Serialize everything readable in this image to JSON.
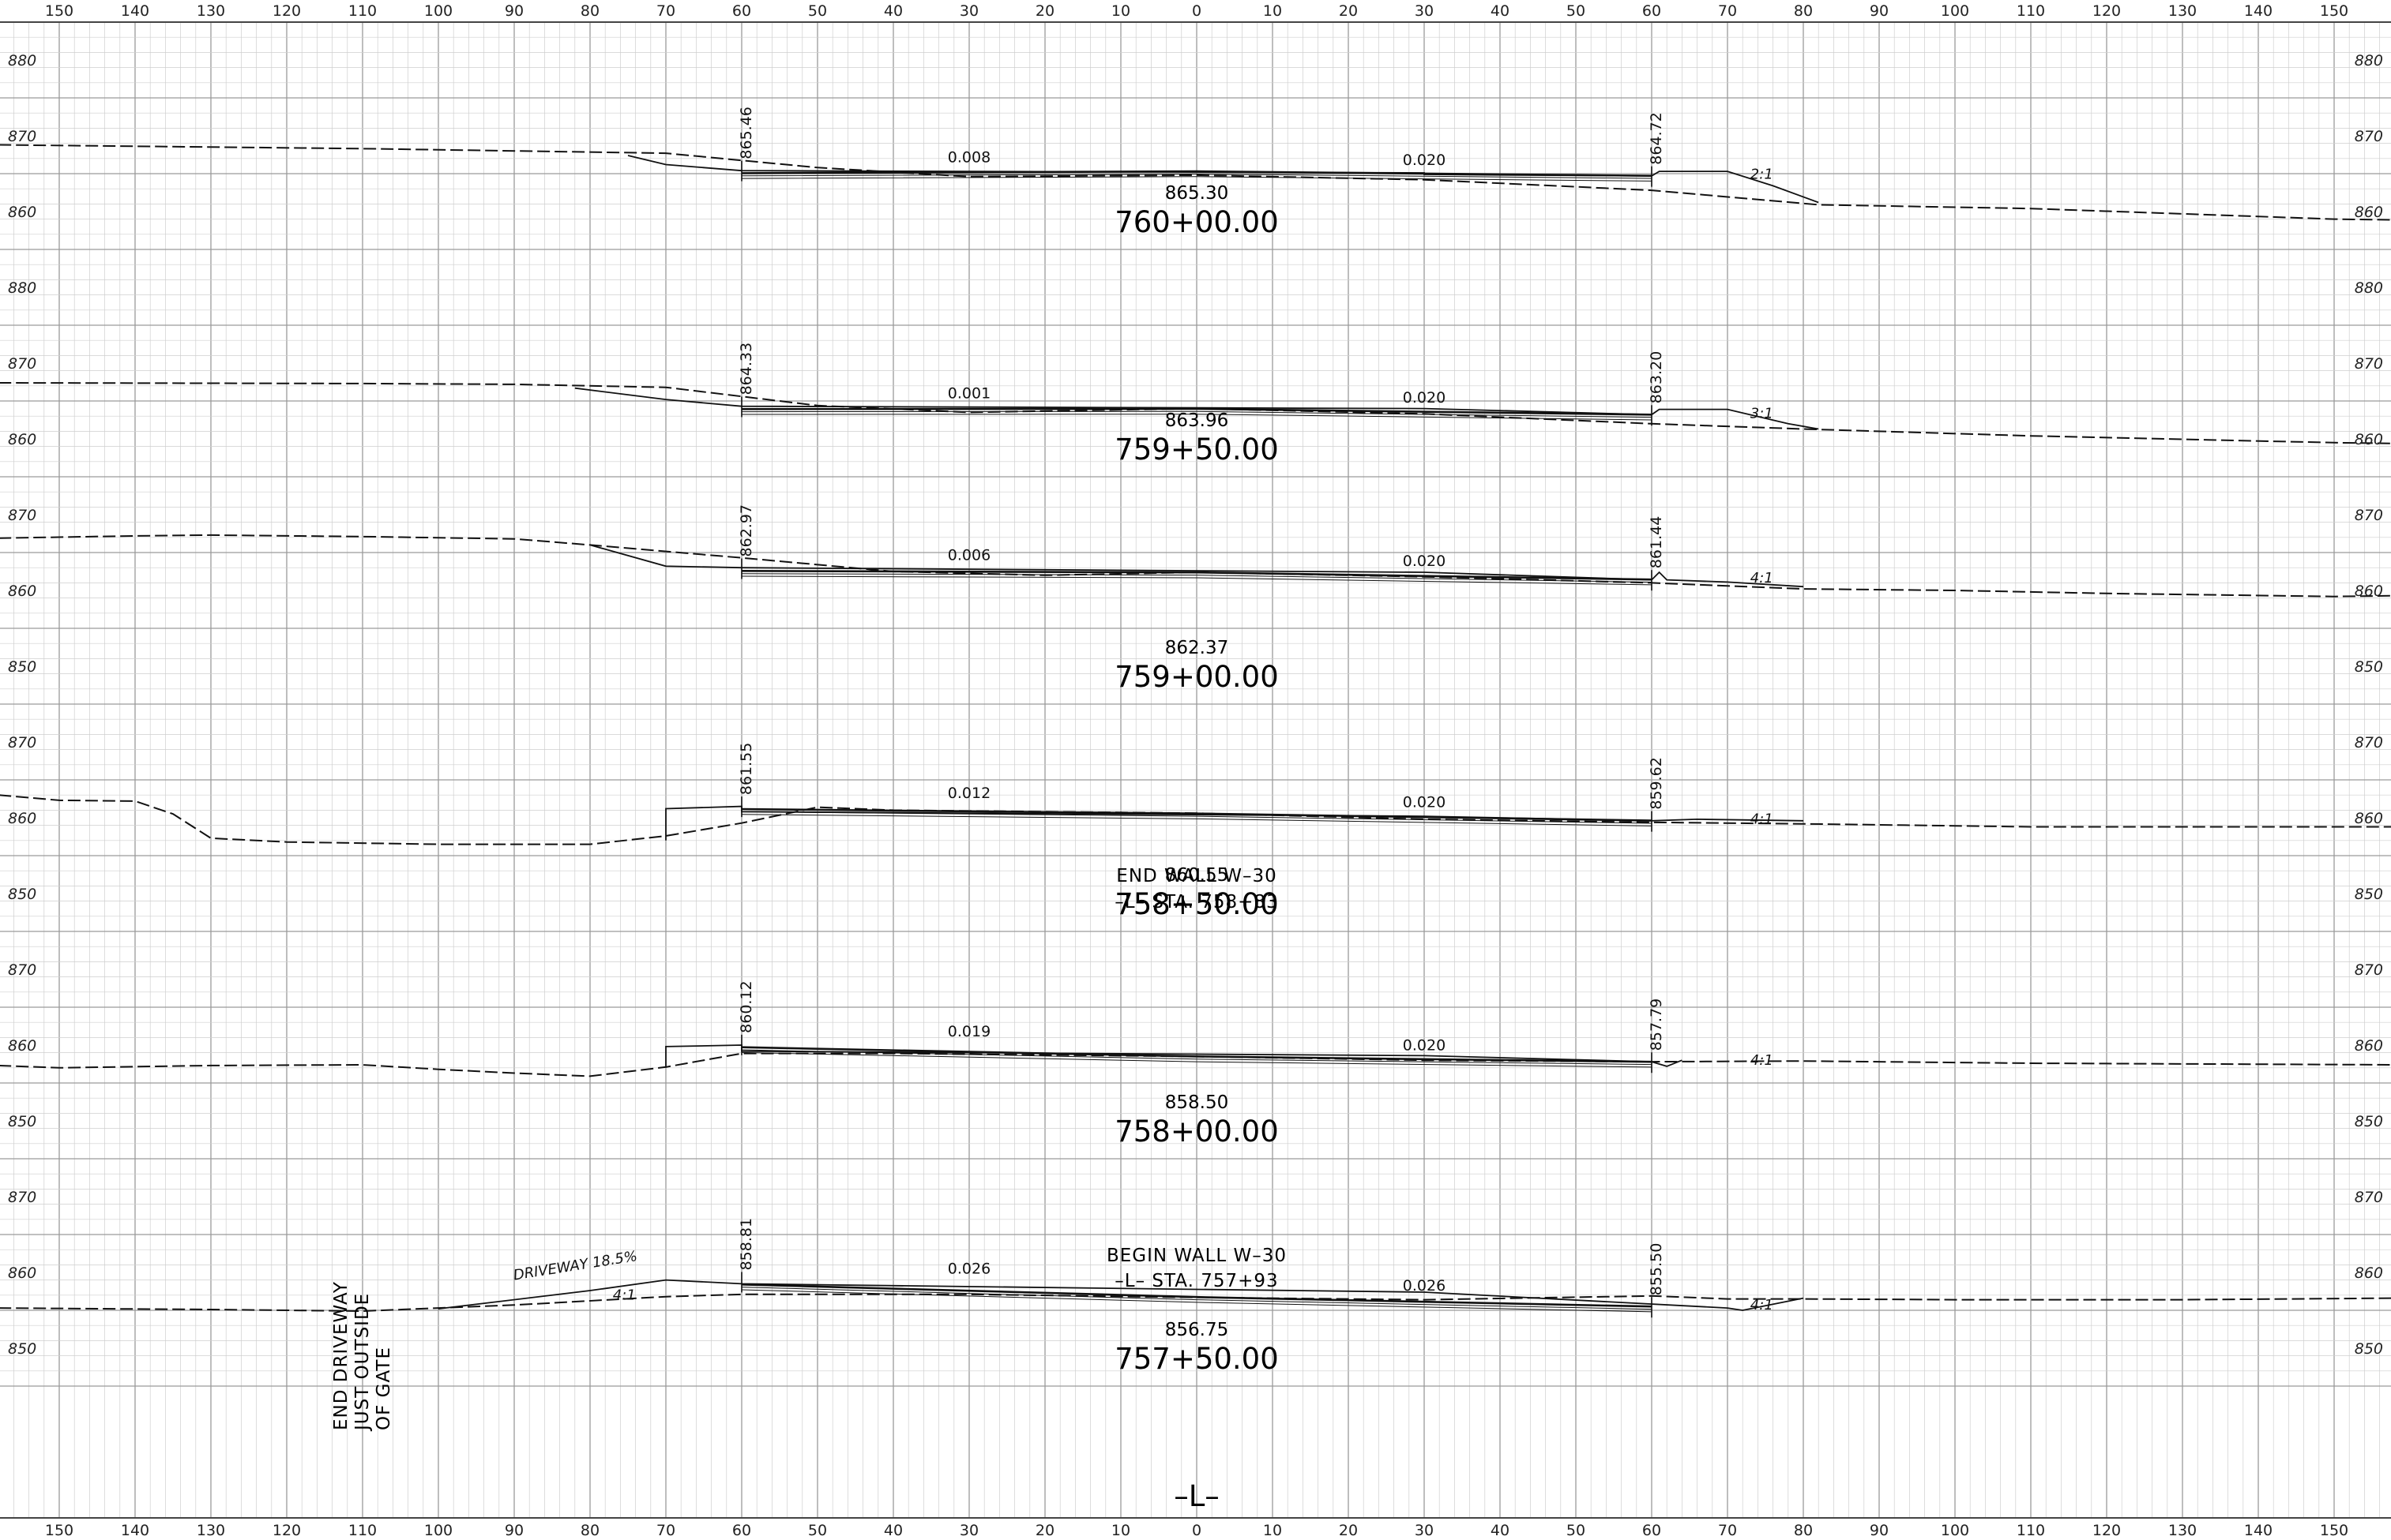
{
  "sheet": {
    "offset_ticks": [
      "150",
      "140",
      "130",
      "120",
      "110",
      "100",
      "90",
      "80",
      "70",
      "60",
      "50",
      "40",
      "30",
      "20",
      "10",
      "0",
      "10",
      "20",
      "30",
      "40",
      "50",
      "60",
      "70",
      "80",
      "90",
      "100",
      "110",
      "120",
      "130",
      "140",
      "150"
    ],
    "centerline_label": "–L–"
  },
  "sections": [
    {
      "station": "760+00.00",
      "elev_labels": [
        "880",
        "870",
        "860"
      ],
      "elev_range": [
        855,
        885
      ],
      "centerline_grade": "865.30",
      "left_edge_grade": "865.46",
      "right_edge_grade": "864.72",
      "left_slope": "0.008",
      "right_slope": "0.020",
      "side_slope": "2:1",
      "existing_ground": [
        [
          -158,
          868.8
        ],
        [
          -110,
          868.3
        ],
        [
          -70,
          867.7
        ],
        [
          -50,
          865.8
        ],
        [
          -30,
          864.6
        ],
        [
          0,
          864.8
        ],
        [
          30,
          864.2
        ],
        [
          60,
          862.8
        ],
        [
          75,
          861.5
        ],
        [
          82,
          860.9
        ],
        [
          110,
          860.4
        ],
        [
          150,
          859.0
        ],
        [
          158,
          858.9
        ]
      ],
      "proposed": [
        [
          -75,
          867.4
        ],
        [
          -70,
          866.2
        ],
        [
          -60,
          865.4
        ],
        [
          30,
          865.1
        ],
        [
          30,
          864.9
        ],
        [
          60,
          864.7
        ],
        [
          61,
          865.3
        ],
        [
          70,
          865.3
        ],
        [
          76,
          863.4
        ],
        [
          82,
          861.2
        ]
      ]
    },
    {
      "station": "759+50.00",
      "elev_labels": [
        "880",
        "870",
        "860"
      ],
      "elev_range": [
        855,
        885
      ],
      "centerline_grade": "863.96",
      "left_edge_grade": "864.33",
      "right_edge_grade": "863.20",
      "left_slope": "0.001",
      "right_slope": "0.020",
      "side_slope": "3:1",
      "existing_ground": [
        [
          -158,
          867.4
        ],
        [
          -110,
          867.3
        ],
        [
          -90,
          867.2
        ],
        [
          -70,
          866.8
        ],
        [
          -50,
          864.4
        ],
        [
          -30,
          863.5
        ],
        [
          0,
          864.0
        ],
        [
          30,
          863.3
        ],
        [
          60,
          862.0
        ],
        [
          80,
          861.3
        ],
        [
          110,
          860.4
        ],
        [
          150,
          859.5
        ],
        [
          158,
          859.4
        ]
      ],
      "proposed": [
        [
          -82,
          866.7
        ],
        [
          -70,
          865.2
        ],
        [
          -60,
          864.3
        ],
        [
          30,
          864.0
        ],
        [
          60,
          863.2
        ],
        [
          61,
          863.9
        ],
        [
          70,
          863.9
        ],
        [
          78,
          862.0
        ],
        [
          82,
          861.3
        ]
      ]
    },
    {
      "station": "759+00.00",
      "elev_labels": [
        "870",
        "860",
        "850"
      ],
      "elev_range": [
        845,
        875
      ],
      "centerline_grade": "862.37",
      "left_edge_grade": "862.97",
      "right_edge_grade": "861.44",
      "left_slope": "0.006",
      "right_slope": "0.020",
      "side_slope": "4:1",
      "existing_ground": [
        [
          -158,
          866.9
        ],
        [
          -140,
          867.2
        ],
        [
          -130,
          867.3
        ],
        [
          -110,
          867.1
        ],
        [
          -90,
          866.8
        ],
        [
          -80,
          866.0
        ],
        [
          -60,
          864.3
        ],
        [
          -40,
          862.5
        ],
        [
          -20,
          862.0
        ],
        [
          0,
          862.4
        ],
        [
          30,
          861.8
        ],
        [
          60,
          861.0
        ],
        [
          80,
          860.2
        ],
        [
          100,
          860.0
        ],
        [
          120,
          859.6
        ],
        [
          150,
          859.2
        ],
        [
          158,
          859.3
        ]
      ],
      "proposed": [
        [
          -80,
          866.0
        ],
        [
          -70,
          863.2
        ],
        [
          -60,
          863.0
        ],
        [
          30,
          862.4
        ],
        [
          60,
          861.4
        ],
        [
          61,
          862.4
        ],
        [
          62,
          861.4
        ],
        [
          70,
          861.1
        ],
        [
          80,
          860.5
        ]
      ]
    },
    {
      "station": "758+50.00",
      "elev_labels": [
        "870",
        "860",
        "850"
      ],
      "elev_range": [
        845,
        875
      ],
      "centerline_grade": "860.55",
      "left_edge_grade": "861.55",
      "right_edge_grade": "859.62",
      "left_slope": "0.012",
      "right_slope": "0.020",
      "side_slope": "4:1",
      "existing_ground": [
        [
          -158,
          863.0
        ],
        [
          -150,
          862.3
        ],
        [
          -140,
          862.2
        ],
        [
          -135,
          860.5
        ],
        [
          -130,
          857.3
        ],
        [
          -120,
          856.8
        ],
        [
          -100,
          856.5
        ],
        [
          -80,
          856.5
        ],
        [
          -70,
          857.6
        ],
        [
          -60,
          859.3
        ],
        [
          -50,
          861.4
        ],
        [
          -40,
          861.0
        ],
        [
          0,
          860.6
        ],
        [
          30,
          859.8
        ],
        [
          60,
          859.4
        ],
        [
          80,
          859.2
        ],
        [
          110,
          858.8
        ],
        [
          158,
          858.8
        ]
      ],
      "proposed": [
        [
          -70,
          857.0
        ],
        [
          -70,
          861.2
        ],
        [
          -60,
          861.5
        ],
        [
          -60,
          860.8
        ],
        [
          30,
          860.2
        ],
        [
          60,
          859.6
        ],
        [
          66,
          859.8
        ],
        [
          80,
          859.6
        ]
      ]
    },
    {
      "station": "758+00.00",
      "elev_labels": [
        "870",
        "860",
        "850"
      ],
      "elev_range": [
        845,
        875
      ],
      "centerline_grade": "858.50",
      "left_edge_grade": "860.12",
      "right_edge_grade": "857.79",
      "left_slope": "0.019",
      "right_slope": "0.020",
      "side_slope": "4:1",
      "existing_ground": [
        [
          -158,
          857.3
        ],
        [
          -150,
          857.0
        ],
        [
          -130,
          857.3
        ],
        [
          -110,
          857.4
        ],
        [
          -100,
          856.8
        ],
        [
          -90,
          856.3
        ],
        [
          -80,
          855.9
        ],
        [
          -70,
          857.1
        ],
        [
          -60,
          858.9
        ],
        [
          -40,
          858.9
        ],
        [
          0,
          858.5
        ],
        [
          30,
          858.0
        ],
        [
          60,
          857.8
        ],
        [
          80,
          857.9
        ],
        [
          110,
          857.6
        ],
        [
          158,
          857.4
        ]
      ],
      "proposed": [
        [
          -70,
          857.0
        ],
        [
          -70,
          859.8
        ],
        [
          -60,
          860.0
        ],
        [
          -60,
          859.2
        ],
        [
          30,
          858.6
        ],
        [
          60,
          857.8
        ],
        [
          62,
          857.2
        ],
        [
          64,
          858.0
        ]
      ]
    },
    {
      "station": "757+50.00",
      "elev_labels": [
        "870",
        "860",
        "850"
      ],
      "elev_range": [
        845,
        875
      ],
      "centerline_grade": "856.75",
      "left_edge_grade": "858.81",
      "right_edge_grade": "855.50",
      "left_slope": "0.026",
      "right_slope": "0.026",
      "side_slope": "4:1",
      "driveway_grade": "DRIVEWAY 18.5%",
      "existing_ground": [
        [
          -158,
          855.3
        ],
        [
          -130,
          855.1
        ],
        [
          -110,
          854.9
        ],
        [
          -90,
          855.7
        ],
        [
          -70,
          856.8
        ],
        [
          -60,
          857.1
        ],
        [
          -30,
          857.1
        ],
        [
          0,
          856.7
        ],
        [
          30,
          856.4
        ],
        [
          60,
          856.9
        ],
        [
          70,
          856.5
        ],
        [
          80,
          856.5
        ],
        [
          100,
          856.4
        ],
        [
          130,
          856.4
        ],
        [
          158,
          856.6
        ]
      ],
      "proposed": [
        [
          -100,
          855.2
        ],
        [
          -80,
          857.6
        ],
        [
          -70,
          859.0
        ],
        [
          -60,
          858.5
        ],
        [
          30,
          857.4
        ],
        [
          70,
          855.3
        ],
        [
          72,
          855.0
        ],
        [
          80,
          856.6
        ]
      ]
    }
  ],
  "annotations": {
    "end_wall": [
      "END  WALL  W–30",
      "–L–  STA. 758+83"
    ],
    "begin_wall": [
      "BEGIN  WALL  W–30",
      "–L–  STA. 757+93"
    ],
    "end_driveway": [
      "END  DRIVEWAY",
      "JUST  OUTSIDE",
      "OF  GATE"
    ]
  }
}
